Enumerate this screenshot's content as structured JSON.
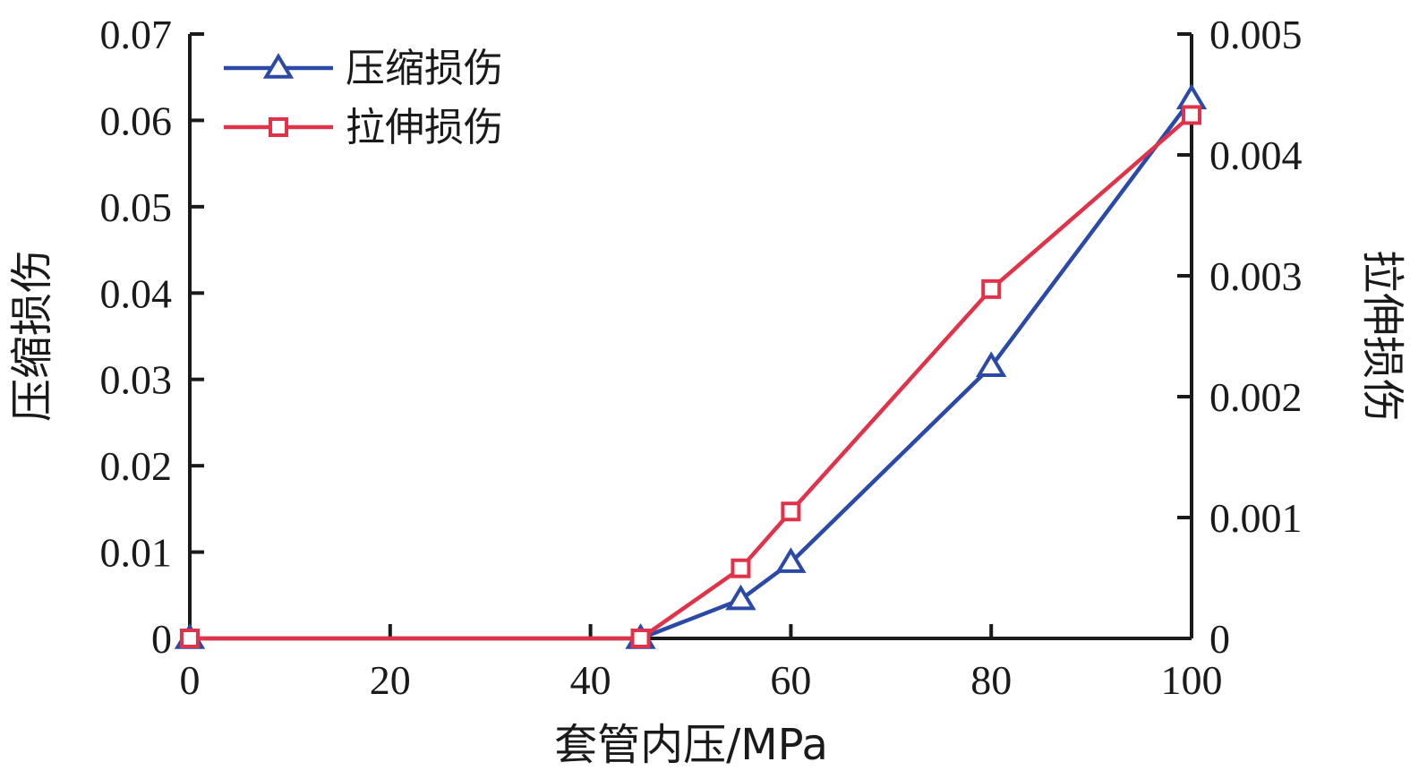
{
  "chart_data": {
    "type": "line",
    "xlabel": "套管内压/MPa",
    "ylabel_left": "压缩损伤",
    "ylabel_right": "拉伸损伤",
    "xlim": [
      0,
      100
    ],
    "ylim_left": [
      0,
      0.07
    ],
    "ylim_right": [
      0,
      0.005
    ],
    "x_ticks": [
      0,
      20,
      40,
      60,
      80,
      100
    ],
    "x_tick_labels": [
      "0",
      "20",
      "40",
      "60",
      "80",
      "100"
    ],
    "y_left_ticks": [
      0,
      0.01,
      0.02,
      0.03,
      0.04,
      0.05,
      0.06,
      0.07
    ],
    "y_left_tick_labels": [
      "0",
      "0.01",
      "0.02",
      "0.03",
      "0.04",
      "0.05",
      "0.06",
      "0.07"
    ],
    "y_right_ticks": [
      0,
      0.001,
      0.002,
      0.003,
      0.004,
      0.005
    ],
    "y_right_tick_labels": [
      "0",
      "0.001",
      "0.002",
      "0.003",
      "0.004",
      "0.005"
    ],
    "grid": false,
    "legend_position": "top-left",
    "series": [
      {
        "name": "压缩损伤",
        "axis": "left",
        "marker": "triangle",
        "color": "#2b4aa8",
        "x": [
          0,
          45,
          55,
          60,
          80,
          100
        ],
        "y": [
          0,
          0,
          0.0045,
          0.0088,
          0.0315,
          0.0625
        ]
      },
      {
        "name": "拉伸损伤",
        "axis": "right",
        "marker": "square",
        "color": "#e0334a",
        "x": [
          0,
          45,
          55,
          60,
          80,
          100
        ],
        "y": [
          0,
          0,
          0.00058,
          0.00105,
          0.00289,
          0.00433
        ]
      }
    ]
  }
}
